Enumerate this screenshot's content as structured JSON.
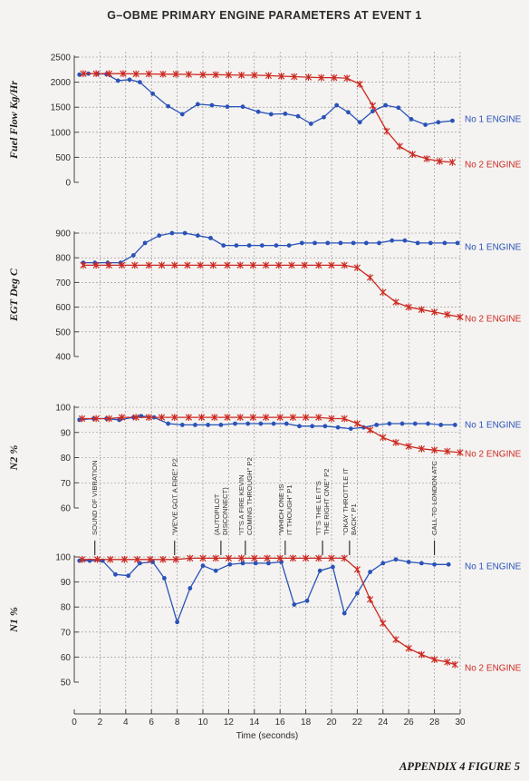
{
  "title": "G–OBME PRIMARY ENGINE PARAMETERS AT EVENT 1",
  "figure_label": "APPENDIX 4 FIGURE 5",
  "colors": {
    "no1": "#2a52b8",
    "no2": "#cc2a22",
    "grid": "#8a8a8a",
    "axis": "#444444"
  },
  "chart_data": {
    "type": "line",
    "xlabel": "Time (seconds)",
    "xlim": [
      0,
      30
    ],
    "xticks": [
      0,
      2,
      4,
      6,
      8,
      10,
      12,
      14,
      16,
      18,
      20,
      22,
      24,
      26,
      28,
      30
    ],
    "grid": true,
    "panels": [
      {
        "id": "fuel",
        "ylabel": "Fuel Flow Kg/Hr",
        "ylim": [
          0,
          2500
        ],
        "yticks": [
          0,
          500,
          1000,
          1500,
          2000,
          2500
        ],
        "series": [
          {
            "name": "No 1 ENGINE",
            "marker": "dot",
            "x": [
              0.4,
              1.1,
              1.8,
              2.5,
              3.4,
              4.3,
              5.1,
              6.1,
              7.3,
              8.4,
              9.6,
              10.7,
              11.9,
              13.1,
              14.3,
              15.3,
              16.4,
              17.4,
              18.4,
              19.4,
              20.4,
              21.3,
              22.2,
              23.2,
              24.2,
              25.2,
              26.2,
              27.3,
              28.3,
              29.4
            ],
            "y": [
              2150,
              2170,
              2170,
              2160,
              2030,
              2050,
              2000,
              1770,
              1520,
              1360,
              1560,
              1540,
              1510,
              1510,
              1410,
              1360,
              1370,
              1320,
              1170,
              1300,
              1540,
              1400,
              1200,
              1420,
              1540,
              1490,
              1260,
              1150,
              1200,
              1230
            ]
          },
          {
            "name": "No 2 ENGINE",
            "marker": "star",
            "x": [
              0.7,
              1.7,
              2.7,
              3.8,
              4.8,
              5.8,
              6.9,
              7.9,
              8.9,
              10.0,
              11.0,
              12.0,
              13.0,
              14.0,
              15.1,
              16.1,
              17.1,
              18.2,
              19.2,
              20.2,
              21.2,
              22.2,
              23.2,
              24.3,
              25.3,
              26.3,
              27.4,
              28.4,
              29.4
            ],
            "y": [
              2170,
              2170,
              2170,
              2170,
              2165,
              2165,
              2160,
              2160,
              2155,
              2150,
              2150,
              2145,
              2140,
              2140,
              2130,
              2120,
              2110,
              2100,
              2090,
              2090,
              2080,
              1960,
              1530,
              1020,
              720,
              560,
              470,
              420,
              400
            ]
          }
        ]
      },
      {
        "id": "egt",
        "ylabel": "EGT Deg C",
        "ylim": [
          400,
          900
        ],
        "yticks": [
          400,
          500,
          600,
          700,
          800,
          900
        ],
        "series": [
          {
            "name": "No 1 ENGINE",
            "marker": "dot",
            "x": [
              0.7,
              1.6,
              2.6,
              3.6,
              4.6,
              5.5,
              6.6,
              7.6,
              8.6,
              9.6,
              10.6,
              11.6,
              12.6,
              13.6,
              14.6,
              15.7,
              16.7,
              17.7,
              18.7,
              19.7,
              20.7,
              21.7,
              22.7,
              23.7,
              24.7,
              25.7,
              26.7,
              27.7,
              28.8,
              29.8
            ],
            "y": [
              780,
              780,
              780,
              780,
              810,
              860,
              890,
              900,
              900,
              890,
              880,
              850,
              850,
              850,
              850,
              850,
              850,
              860,
              860,
              860,
              860,
              860,
              860,
              860,
              870,
              870,
              860,
              860,
              860,
              860
            ]
          },
          {
            "name": "No 2 ENGINE",
            "marker": "star",
            "x": [
              0.7,
              1.7,
              2.7,
              3.7,
              4.7,
              5.8,
              6.8,
              7.8,
              8.8,
              9.8,
              10.8,
              11.9,
              12.9,
              13.9,
              14.9,
              15.9,
              16.9,
              17.9,
              19.0,
              20.0,
              21.0,
              22.0,
              23.0,
              24.0,
              25.0,
              26.0,
              27.0,
              28.0,
              29.0,
              30.0
            ],
            "y": [
              770,
              770,
              770,
              770,
              770,
              770,
              770,
              770,
              770,
              770,
              770,
              770,
              770,
              770,
              770,
              770,
              770,
              770,
              770,
              770,
              770,
              760,
              720,
              660,
              620,
              600,
              590,
              580,
              570,
              560
            ]
          }
        ]
      },
      {
        "id": "n2",
        "ylabel": "N2 %",
        "ylim": [
          60,
          100
        ],
        "yticks": [
          60,
          70,
          80,
          90,
          100
        ],
        "series": [
          {
            "name": "No 1 ENGINE",
            "marker": "dot",
            "x": [
              0.4,
              1.5,
              2.5,
              3.5,
              4.6,
              5.2,
              6.2,
              7.3,
              8.4,
              9.4,
              10.4,
              11.4,
              12.5,
              13.5,
              14.5,
              15.5,
              16.5,
              17.5,
              18.5,
              19.5,
              20.5,
              21.5,
              22.5,
              23.5,
              24.5,
              25.5,
              26.5,
              27.5,
              28.5,
              29.6
            ],
            "y": [
              95,
              95.5,
              95.5,
              95,
              96,
              96.5,
              96,
              93.5,
              93,
              93,
              93,
              93,
              93.5,
              93.5,
              93.5,
              93.5,
              93.5,
              92.5,
              92.5,
              92.5,
              92,
              91.5,
              92,
              93,
              93.5,
              93.5,
              93.5,
              93.5,
              93,
              93
            ]
          },
          {
            "name": "No 2 ENGINE",
            "marker": "star",
            "x": [
              0.6,
              1.7,
              2.7,
              3.7,
              4.8,
              5.8,
              6.8,
              7.8,
              8.9,
              9.9,
              10.9,
              11.9,
              12.9,
              13.9,
              14.9,
              16.0,
              17.0,
              18.0,
              19.0,
              20.0,
              21.0,
              22.0,
              23.0,
              24.0,
              25.0,
              26.0,
              27.0,
              28.0,
              29.0,
              30.0
            ],
            "y": [
              95.5,
              95.5,
              95.5,
              96,
              96,
              96,
              96,
              96,
              96,
              96,
              96,
              96,
              96,
              96,
              96,
              96,
              96,
              96,
              96,
              95.5,
              95.5,
              93.5,
              91,
              88,
              86,
              84.5,
              83.5,
              83,
              82.5,
              82
            ]
          }
        ]
      },
      {
        "id": "n1",
        "ylabel": "N1 %",
        "ylim": [
          50,
          100
        ],
        "yticks": [
          50,
          60,
          70,
          80,
          90,
          100
        ],
        "series": [
          {
            "name": "No 1 ENGINE",
            "marker": "dot",
            "x": [
              0.4,
              1.2,
              2.2,
              3.2,
              4.2,
              5.1,
              6.1,
              7.0,
              8.0,
              9.0,
              10.0,
              11.0,
              12.1,
              13.1,
              14.1,
              15.1,
              16.1,
              17.1,
              18.1,
              19.1,
              20.1,
              21.0,
              22.0,
              23.0,
              24.0,
              25.0,
              26.0,
              27.0,
              28.0,
              29.1
            ],
            "y": [
              98.5,
              98.5,
              98.5,
              93,
              92.5,
              97.5,
              98,
              91.5,
              74,
              87.5,
              96.5,
              94.5,
              97,
              97.5,
              97.5,
              97.5,
              98,
              81,
              82.5,
              94.5,
              96,
              77.5,
              85.5,
              94,
              97.5,
              99,
              98,
              97.5,
              97,
              97
            ]
          },
          {
            "name": "No 2 ENGINE",
            "marker": "star",
            "x": [
              0.6,
              1.8,
              2.8,
              3.9,
              4.9,
              5.9,
              6.9,
              7.9,
              9.0,
              10.0,
              11.0,
              12.0,
              13.0,
              14.0,
              15.0,
              16.0,
              17.0,
              18.0,
              19.0,
              20.0,
              21.0,
              22.0,
              23.0,
              24.0,
              25.0,
              26.0,
              27.0,
              28.0,
              29.0,
              29.6
            ],
            "y": [
              99,
              99,
              99,
              99,
              99,
              99,
              99,
              99,
              99.5,
              99.5,
              99.5,
              99.5,
              99.5,
              99.5,
              99.5,
              99.5,
              99.5,
              99.5,
              99.5,
              99.5,
              99.5,
              95,
              83,
              73.5,
              67,
              63.5,
              61,
              59,
              58,
              57
            ]
          }
        ]
      }
    ],
    "annotations": [
      {
        "time": 1.6,
        "lines": [
          "SOUND OF VIBRATION"
        ]
      },
      {
        "time": 7.8,
        "lines": [
          "\"WE'VE GOT A FIRE\" P2"
        ]
      },
      {
        "time": 11.4,
        "lines": [
          "(AUTOPILOT",
          "DISCONNECT)"
        ]
      },
      {
        "time": 13.3,
        "lines": [
          "\"IT'S A FIRE KEVIN",
          "COMING THROUGH\" P2"
        ]
      },
      {
        "time": 16.4,
        "lines": [
          "\"WHICH ONE IS",
          "IT THOUGH\" P1"
        ]
      },
      {
        "time": 19.3,
        "lines": [
          "\"IT'S THE LE IT'S",
          "THE RIGHT ONE\" P2"
        ]
      },
      {
        "time": 21.4,
        "lines": [
          "\"OKAY THROTTLE IT",
          "BACK\" P1"
        ]
      },
      {
        "time": 28.0,
        "lines": [
          "CALL TO LONDON ATC"
        ]
      }
    ]
  }
}
